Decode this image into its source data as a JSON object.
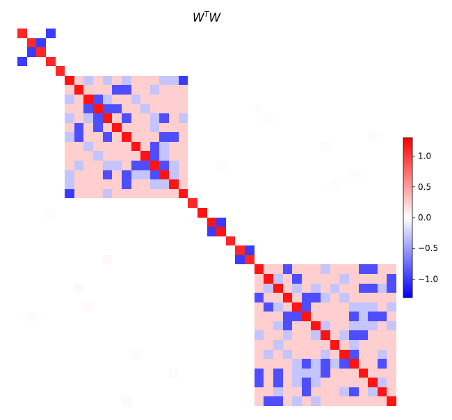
{
  "chart_data": {
    "type": "heatmap",
    "title": "W",
    "title_sup": "T",
    "title_tail": "W",
    "size": 40,
    "colormap": "bwr",
    "vmin": -1.3,
    "vmax": 1.3,
    "colorbar_ticks": [
      1.0,
      0.5,
      0.0,
      -0.5,
      -1.0
    ],
    "colorbar_tick_labels": [
      "1.0",
      "0.5",
      "0.0",
      "−0.5",
      "−1.0"
    ],
    "xlabel": "",
    "ylabel": "",
    "grid": false,
    "blocks": [
      {
        "name": "block-1",
        "start": 5,
        "end": 17,
        "diag": 1.2,
        "pos": 0.25,
        "neg": -0.9,
        "weak": -0.3,
        "seed": 7
      },
      {
        "name": "block-2",
        "start": 25,
        "end": 39,
        "diag": 1.2,
        "pos": 0.25,
        "neg": -0.9,
        "weak": -0.3,
        "seed": 13
      }
    ],
    "entries": [
      [
        0,
        0,
        1.1
      ],
      [
        0,
        3,
        -1.0
      ],
      [
        1,
        1,
        1.1
      ],
      [
        1,
        2,
        -1.0
      ],
      [
        2,
        1,
        -1.0
      ],
      [
        2,
        2,
        1.1
      ],
      [
        3,
        0,
        -1.0
      ],
      [
        3,
        3,
        1.1
      ],
      [
        4,
        4,
        1.1
      ],
      [
        5,
        17,
        -1.0
      ],
      [
        17,
        5,
        -1.0
      ],
      [
        18,
        18,
        1.1
      ],
      [
        19,
        19,
        1.2
      ],
      [
        20,
        20,
        1.2
      ],
      [
        20,
        21,
        -1.0
      ],
      [
        21,
        20,
        -1.0
      ],
      [
        21,
        21,
        1.2
      ],
      [
        22,
        22,
        1.1
      ],
      [
        23,
        23,
        1.1
      ],
      [
        23,
        24,
        -1.0
      ],
      [
        24,
        23,
        -1.0
      ],
      [
        24,
        24,
        1.1
      ]
    ],
    "noise": [
      [
        27,
        6,
        -0.03
      ],
      [
        24,
        9,
        0.04
      ],
      [
        29,
        7,
        0.03
      ],
      [
        34,
        12,
        0.03
      ],
      [
        39,
        11,
        -0.03
      ],
      [
        9,
        26,
        0.02
      ],
      [
        12,
        32,
        0.02
      ],
      [
        15,
        35,
        0.02
      ],
      [
        8,
        25,
        0.02
      ],
      [
        11,
        37,
        0.02
      ],
      [
        16,
        33,
        0.02
      ],
      [
        19,
        3,
        0.02
      ],
      [
        30,
        1,
        0.02
      ],
      [
        14,
        21,
        0.02
      ],
      [
        36,
        16,
        -0.02
      ]
    ]
  }
}
